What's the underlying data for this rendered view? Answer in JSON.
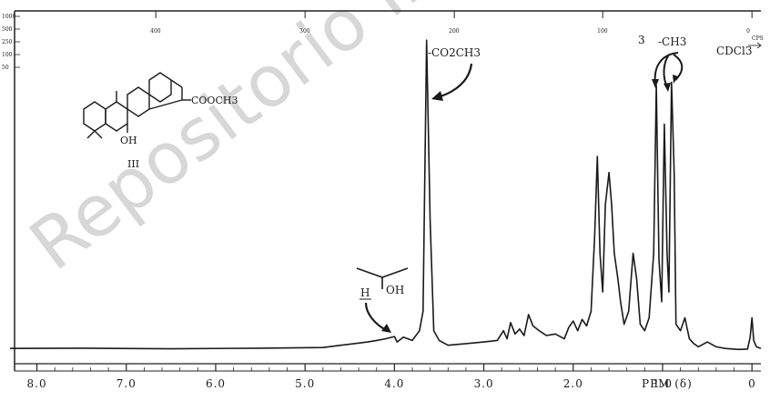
{
  "watermark": "Repositorio Inst",
  "chart_data": {
    "type": "line",
    "title": "",
    "xlabel": "PPM (δ)",
    "ylabel": "",
    "x_reversed": true,
    "xlim": [
      8.25,
      -0.1
    ],
    "ylim": [
      0,
      100
    ],
    "grid": false,
    "ppm_ticks": [
      {
        "value": 8.0,
        "label": "8.0"
      },
      {
        "value": 7.0,
        "label": "7.0"
      },
      {
        "value": 6.0,
        "label": "6.0"
      },
      {
        "value": 5.0,
        "label": "5.0"
      },
      {
        "value": 4.0,
        "label": "4.0"
      },
      {
        "value": 3.0,
        "label": "3.0"
      },
      {
        "value": 2.0,
        "label": "2.0"
      },
      {
        "value": 1.0,
        "label": "1.0"
      },
      {
        "value": 0.0,
        "label": "0"
      }
    ],
    "cps_ticks": [
      {
        "value": 6.67,
        "label": "400"
      },
      {
        "value": 5.0,
        "label": "300"
      },
      {
        "value": 3.33,
        "label": "200"
      },
      {
        "value": 1.67,
        "label": "100"
      },
      {
        "value": 0.0,
        "label": "0"
      }
    ],
    "cps_unit": "CPS",
    "left_scale_labels": [
      "1000",
      "500",
      "250",
      "100",
      "50"
    ],
    "series": [
      {
        "color": "#1a1a1a",
        "x": [
          8.3,
          7.5,
          6.5,
          5.5,
          4.8,
          4.6,
          4.3,
          4.2,
          4.1,
          4.0,
          3.97,
          3.9,
          3.8,
          3.72,
          3.68,
          3.64,
          3.6,
          3.56,
          3.5,
          3.4,
          3.2,
          3.0,
          2.85,
          2.78,
          2.74,
          2.7,
          2.65,
          2.6,
          2.55,
          2.5,
          2.45,
          2.38,
          2.3,
          2.2,
          2.1,
          2.05,
          2.0,
          1.95,
          1.9,
          1.85,
          1.8,
          1.76,
          1.73,
          1.7,
          1.67,
          1.64,
          1.6,
          1.57,
          1.54,
          1.5,
          1.47,
          1.43,
          1.38,
          1.33,
          1.29,
          1.25,
          1.2,
          1.15,
          1.1,
          1.07,
          1.04,
          1.01,
          0.98,
          0.95,
          0.93,
          0.9,
          0.87,
          0.85,
          0.8,
          0.75,
          0.7,
          0.65,
          0.6,
          0.5,
          0.4,
          0.3,
          0.15,
          0.05,
          0.02,
          0.0,
          -0.02,
          -0.05,
          -0.1
        ],
        "y": [
          0.5,
          0.6,
          0.4,
          0.6,
          0.8,
          1.5,
          2.5,
          3.0,
          3.5,
          4.2,
          2.5,
          4.0,
          3.0,
          6.0,
          12.0,
          96.0,
          40.0,
          6.0,
          3.0,
          1.5,
          2.0,
          2.5,
          3.0,
          6.0,
          3.5,
          8.5,
          5.0,
          6.5,
          4.5,
          11.0,
          7.5,
          6.0,
          4.5,
          5.0,
          3.5,
          7.0,
          9.0,
          6.0,
          9.5,
          7.5,
          12.0,
          35.0,
          60.0,
          30.0,
          18.0,
          45.0,
          55.0,
          45.0,
          30.0,
          22.0,
          15.0,
          8.0,
          12.0,
          30.0,
          22.0,
          8.0,
          6.0,
          10.0,
          30.0,
          82.0,
          28.0,
          15.0,
          70.0,
          30.0,
          18.0,
          83.0,
          55.0,
          8.0,
          6.0,
          10.0,
          3.5,
          2.0,
          1.0,
          2.5,
          1.0,
          0.5,
          0.2,
          0.3,
          4.0,
          10.0,
          3.0,
          1.0,
          0.5
        ]
      }
    ],
    "annotations": [
      {
        "target": "methyl_ester_peak",
        "text": "-CO2CH3"
      },
      {
        "target": "methyl_peaks",
        "count": "3",
        "text": "-CH3"
      },
      {
        "target": "solvent",
        "text": "CDCl3"
      },
      {
        "target": "carbinol_h",
        "h": "H",
        "oh": "OH"
      }
    ]
  },
  "structure": {
    "substituent": "COOCH3",
    "hydroxyl": "OH",
    "compound_label": "III"
  }
}
